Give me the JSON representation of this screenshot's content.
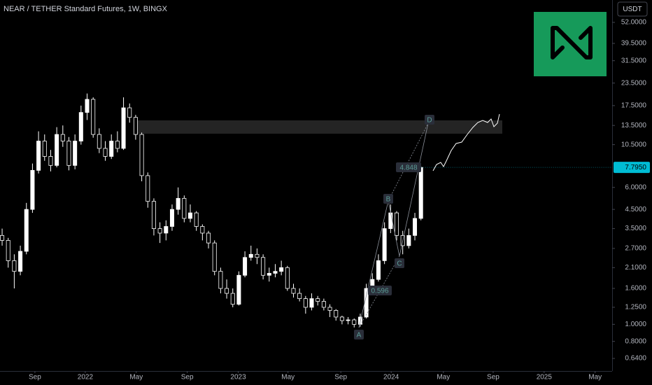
{
  "chart_data": {
    "type": "candlestick",
    "title": "NEAR / TETHER Standard Futures, 1W, BINGX",
    "currency": "USDT",
    "log_y": true,
    "grid": false,
    "up_color": "#ffffff",
    "down_color": "#000000",
    "wick_color": "#ffffff",
    "open": [
      3.2,
      3.0,
      2.3,
      2.0,
      2.6,
      4.5,
      7.5,
      11,
      9,
      8,
      12,
      11,
      8,
      11,
      16,
      19,
      12,
      10,
      9,
      11,
      10,
      17,
      15,
      12,
      7,
      5,
      3.5,
      3.3,
      3.6,
      4.5,
      5.2,
      4.0,
      4.3,
      3.6,
      3.3,
      2.9,
      2.0,
      1.6,
      1.5,
      1.3,
      1.9,
      2.4,
      2.5,
      2.4,
      1.9,
      1.95,
      2.0,
      2.1,
      1.6,
      1.5,
      1.4,
      1.25,
      1.4,
      1.35,
      1.25,
      1.2,
      1.1,
      1.05,
      1.06,
      1.0,
      1.1,
      1.6,
      1.8,
      2.3,
      3.5,
      4.3,
      3.2,
      2.8,
      3.2,
      4.0
    ],
    "high": [
      3.5,
      3.1,
      2.5,
      2.8,
      4.9,
      8.2,
      12.5,
      12,
      9.8,
      13.2,
      13.5,
      11.6,
      12,
      17.5,
      20.5,
      19.5,
      13,
      11,
      12,
      12.5,
      19.5,
      18,
      15.5,
      12.3,
      7.3,
      5.2,
      3.8,
      3.9,
      4.8,
      6.0,
      5.4,
      4.8,
      4.4,
      3.7,
      3.4,
      3.0,
      2.1,
      1.8,
      1.6,
      2.0,
      2.6,
      2.8,
      2.7,
      2.5,
      2.1,
      2.2,
      2.3,
      2.15,
      1.7,
      1.6,
      1.45,
      1.5,
      1.45,
      1.4,
      1.3,
      1.22,
      1.12,
      1.1,
      1.08,
      1.15,
      1.7,
      1.95,
      2.5,
      3.8,
      4.8,
      4.4,
      3.4,
      3.5,
      4.3,
      7.9
    ],
    "low": [
      2.8,
      2.1,
      1.6,
      1.9,
      2.5,
      4.3,
      7.2,
      8.5,
      7.4,
      7.8,
      10.2,
      7.5,
      7.6,
      10.5,
      14.5,
      11.5,
      9.4,
      8.5,
      8.7,
      9.5,
      9.8,
      14,
      11.2,
      6.5,
      4.6,
      3.2,
      2.9,
      3.0,
      3.4,
      4.2,
      3.8,
      3.8,
      3.4,
      3.0,
      2.7,
      1.9,
      1.5,
      1.4,
      1.25,
      1.28,
      1.85,
      2.3,
      2.2,
      1.8,
      1.75,
      1.85,
      1.9,
      1.55,
      1.42,
      1.35,
      1.15,
      1.2,
      1.28,
      1.2,
      1.1,
      1.05,
      1.0,
      1.0,
      0.96,
      0.97,
      1.08,
      1.5,
      1.75,
      2.2,
      3.3,
      3.0,
      2.5,
      2.7,
      3.0,
      3.9
    ],
    "close": [
      3.0,
      2.3,
      2.0,
      2.6,
      4.5,
      7.5,
      11,
      9,
      8,
      12,
      11,
      8,
      11,
      16,
      19,
      12,
      10,
      9,
      11,
      10,
      17,
      15,
      12,
      7,
      5,
      3.5,
      3.3,
      3.6,
      4.5,
      5.2,
      4.0,
      4.3,
      3.6,
      3.3,
      2.9,
      2.0,
      1.6,
      1.5,
      1.3,
      1.9,
      2.4,
      2.5,
      2.4,
      1.9,
      1.95,
      2.0,
      2.1,
      1.6,
      1.5,
      1.4,
      1.25,
      1.4,
      1.35,
      1.25,
      1.2,
      1.1,
      1.05,
      1.06,
      1.0,
      1.1,
      1.6,
      1.8,
      2.3,
      3.5,
      4.3,
      3.2,
      2.8,
      3.2,
      4.0,
      7.795
    ],
    "last_close_label": "7.7950",
    "xlim": [
      -0.35,
      100.5
    ],
    "xticks": [
      {
        "value": 5.4,
        "label": "Sep"
      },
      {
        "value": 13.7,
        "label": "2022"
      },
      {
        "value": 22.1,
        "label": "May"
      },
      {
        "value": 30.5,
        "label": "Sep"
      },
      {
        "value": 38.9,
        "label": "2023"
      },
      {
        "value": 47.1,
        "label": "May"
      },
      {
        "value": 55.8,
        "label": "Sep"
      },
      {
        "value": 64.1,
        "label": "2024"
      },
      {
        "value": 72.7,
        "label": "May"
      },
      {
        "value": 80.9,
        "label": "Sep"
      },
      {
        "value": 89.3,
        "label": "2025"
      },
      {
        "value": 97.7,
        "label": "May"
      }
    ],
    "ylim": [
      0.543,
      69.7
    ],
    "yticks": [
      {
        "value": 52,
        "label": "52.0000"
      },
      {
        "value": 39.5,
        "label": "39.5000"
      },
      {
        "value": 31.5,
        "label": "31.5000"
      },
      {
        "value": 23.5,
        "label": "23.5000"
      },
      {
        "value": 17.5,
        "label": "17.5000"
      },
      {
        "value": 13.5,
        "label": "13.5000"
      },
      {
        "value": 10.5,
        "label": "10.5000"
      },
      {
        "value": 6,
        "label": "6.0000"
      },
      {
        "value": 4.5,
        "label": "4.5000"
      },
      {
        "value": 3.5,
        "label": "3.5000"
      },
      {
        "value": 2.7,
        "label": "2.7000"
      },
      {
        "value": 2.1,
        "label": "2.1000"
      },
      {
        "value": 1.6,
        "label": "1.6000"
      },
      {
        "value": 1.25,
        "label": "1.2500"
      },
      {
        "value": 1,
        "label": "1.0000"
      },
      {
        "value": 0.8,
        "label": "0.8000"
      },
      {
        "value": 0.64,
        "label": "0.6400"
      }
    ],
    "annotations": [
      "A",
      "B",
      "C",
      "D",
      "0.596",
      "4.848"
    ]
  }
}
